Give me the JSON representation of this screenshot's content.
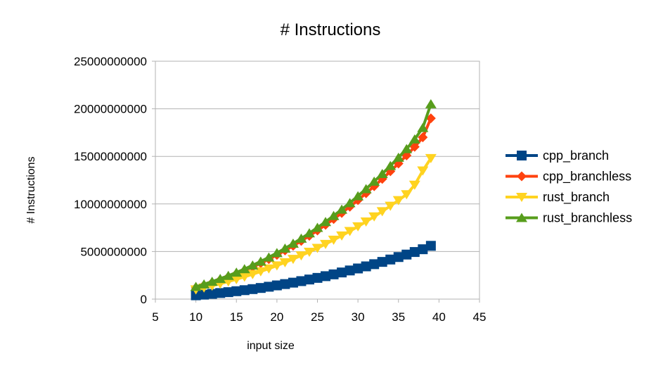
{
  "chart_data": {
    "type": "line",
    "title": "# Instructions",
    "xlabel": "input size",
    "ylabel": "# Instructions",
    "xlim": [
      5,
      45
    ],
    "ylim": [
      0,
      25000000000
    ],
    "xticks": [
      5,
      10,
      15,
      20,
      25,
      30,
      35,
      40,
      45
    ],
    "yticks": [
      0,
      5000000000,
      10000000000,
      15000000000,
      20000000000,
      25000000000
    ],
    "xtick_labels": [
      "5",
      "10",
      "15",
      "20",
      "25",
      "30",
      "35",
      "40",
      "45"
    ],
    "ytick_labels": [
      "0",
      "5000000000",
      "10000000000",
      "15000000000",
      "20000000000",
      "25000000000"
    ],
    "grid": "horizontal",
    "legend_position": "right",
    "x": [
      10,
      11,
      12,
      13,
      14,
      15,
      16,
      17,
      18,
      19,
      20,
      21,
      22,
      23,
      24,
      25,
      26,
      27,
      28,
      29,
      30,
      31,
      32,
      33,
      34,
      35,
      36,
      37,
      38,
      39
    ],
    "series": [
      {
        "name": "cpp_branch",
        "color": "#004586",
        "marker": "square",
        "values": [
          400000000,
          470000000,
          550000000,
          640000000,
          730000000,
          830000000,
          940000000,
          1050000000,
          1170000000,
          1300000000,
          1440000000,
          1580000000,
          1730000000,
          1890000000,
          2060000000,
          2230000000,
          2410000000,
          2600000000,
          2800000000,
          3010000000,
          3220000000,
          3440000000,
          3670000000,
          3910000000,
          4160000000,
          4420000000,
          4680000000,
          4950000000,
          5240000000,
          5600000000
        ]
      },
      {
        "name": "cpp_branchless",
        "color": "#ff420e",
        "marker": "diamond",
        "values": [
          1200000000,
          1450000000,
          1720000000,
          2010000000,
          2320000000,
          2650000000,
          3000000000,
          3380000000,
          3780000000,
          4200000000,
          4640000000,
          5110000000,
          5600000000,
          6110000000,
          6650000000,
          7210000000,
          7800000000,
          8410000000,
          9050000000,
          9710000000,
          10400000000,
          11120000000,
          11860000000,
          12630000000,
          13430000000,
          14250000000,
          15100000000,
          16000000000,
          17000000000,
          19000000000
        ]
      },
      {
        "name": "rust_branch",
        "color": "#ffd320",
        "marker": "triangle-down",
        "values": [
          1000000000,
          1200000000,
          1400000000,
          1610000000,
          1840000000,
          2080000000,
          2340000000,
          2610000000,
          2900000000,
          3200000000,
          3520000000,
          3860000000,
          4210000000,
          4580000000,
          4960000000,
          5360000000,
          5780000000,
          6220000000,
          6670000000,
          7140000000,
          7630000000,
          8140000000,
          8670000000,
          9220000000,
          9790000000,
          10380000000,
          11000000000,
          12000000000,
          13500000000,
          14800000000
        ]
      },
      {
        "name": "rust_branchless",
        "color": "#579d1c",
        "marker": "triangle-up",
        "values": [
          1300000000,
          1560000000,
          1840000000,
          2140000000,
          2460000000,
          2800000000,
          3160000000,
          3550000000,
          3960000000,
          4390000000,
          4850000000,
          5330000000,
          5840000000,
          6370000000,
          6930000000,
          7510000000,
          8120000000,
          8760000000,
          9420000000,
          10110000000,
          10830000000,
          11580000000,
          12360000000,
          13170000000,
          14010000000,
          14880000000,
          15780000000,
          16800000000,
          18000000000,
          20500000000
        ]
      }
    ]
  }
}
